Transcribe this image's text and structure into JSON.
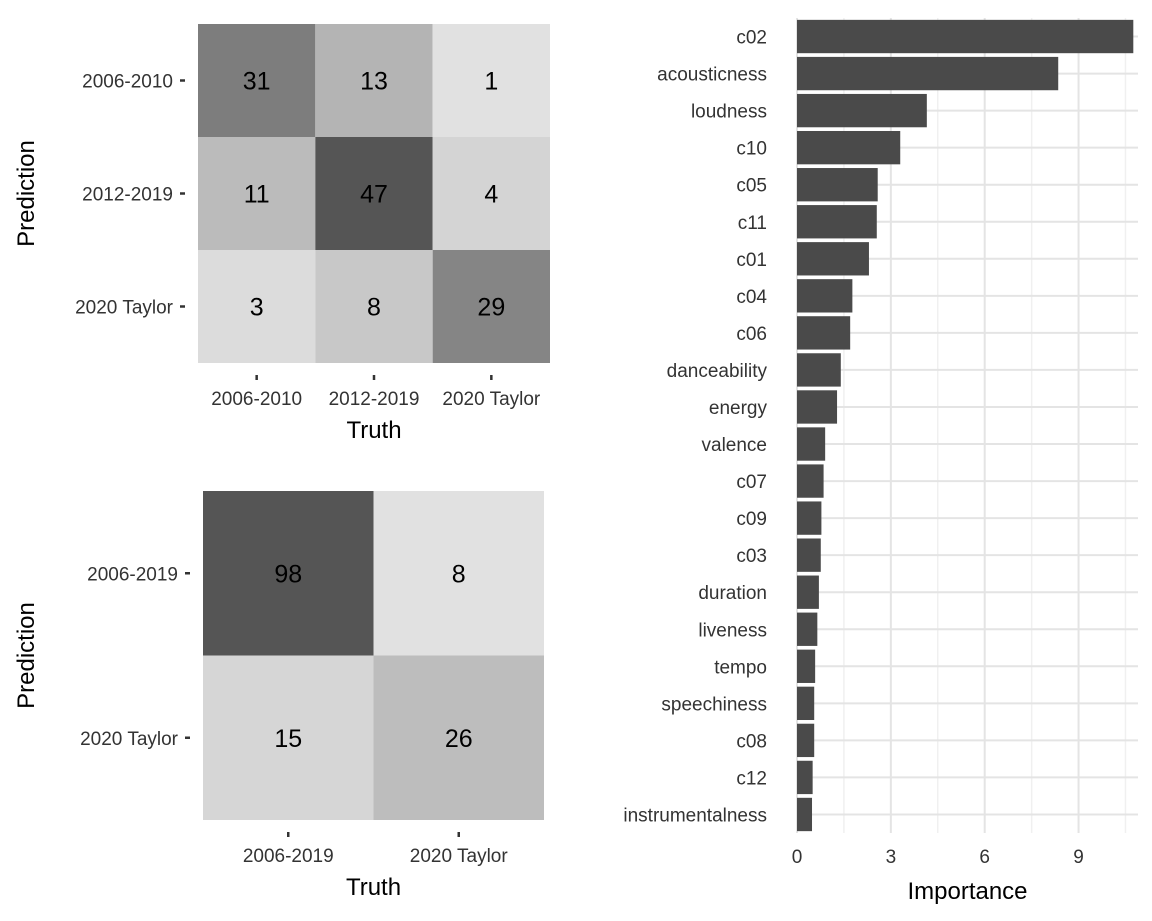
{
  "chart_data": [
    {
      "type": "heatmap",
      "subtype": "confusion-matrix",
      "xlabel": "Truth",
      "ylabel": "Prediction",
      "x_categories": [
        "2006-2010",
        "2012-2019",
        "2020 Taylor"
      ],
      "y_categories": [
        "2006-2010",
        "2012-2019",
        "2020 Taylor"
      ],
      "cells": [
        [
          31,
          13,
          1
        ],
        [
          11,
          47,
          4
        ],
        [
          3,
          8,
          29
        ]
      ],
      "fill_colors": [
        [
          "#7d7d7d",
          "#b4b4b4",
          "#e1e1e1"
        ],
        [
          "#bbbbbb",
          "#555555",
          "#d4d4d4"
        ],
        [
          "#dcdcdc",
          "#c8c8c8",
          "#858585"
        ]
      ]
    },
    {
      "type": "heatmap",
      "subtype": "confusion-matrix",
      "xlabel": "Truth",
      "ylabel": "Prediction",
      "x_categories": [
        "2006-2019",
        "2020 Taylor"
      ],
      "y_categories": [
        "2006-2019",
        "2020 Taylor"
      ],
      "cells": [
        [
          98,
          8
        ],
        [
          15,
          26
        ]
      ],
      "fill_colors": [
        [
          "#555555",
          "#e1e1e1"
        ],
        [
          "#d6d6d6",
          "#bdbdbd"
        ]
      ]
    },
    {
      "type": "bar",
      "orientation": "horizontal",
      "xlabel": "Importance",
      "ylabel": "",
      "xlim": [
        0,
        10.9
      ],
      "xticks": [
        0,
        3,
        6,
        9
      ],
      "grid": true,
      "bar_color": "#4a4a4a",
      "categories": [
        "c02",
        "acousticness",
        "loudness",
        "c10",
        "c05",
        "c11",
        "c01",
        "c04",
        "c06",
        "danceability",
        "energy",
        "valence",
        "c07",
        "c09",
        "c03",
        "duration",
        "liveness",
        "tempo",
        "speechiness",
        "c08",
        "c12",
        "instrumentalness"
      ],
      "values": [
        10.75,
        8.35,
        4.15,
        3.3,
        2.58,
        2.55,
        2.3,
        1.77,
        1.7,
        1.4,
        1.28,
        0.9,
        0.85,
        0.78,
        0.76,
        0.7,
        0.65,
        0.58,
        0.55,
        0.55,
        0.5,
        0.48
      ]
    }
  ]
}
